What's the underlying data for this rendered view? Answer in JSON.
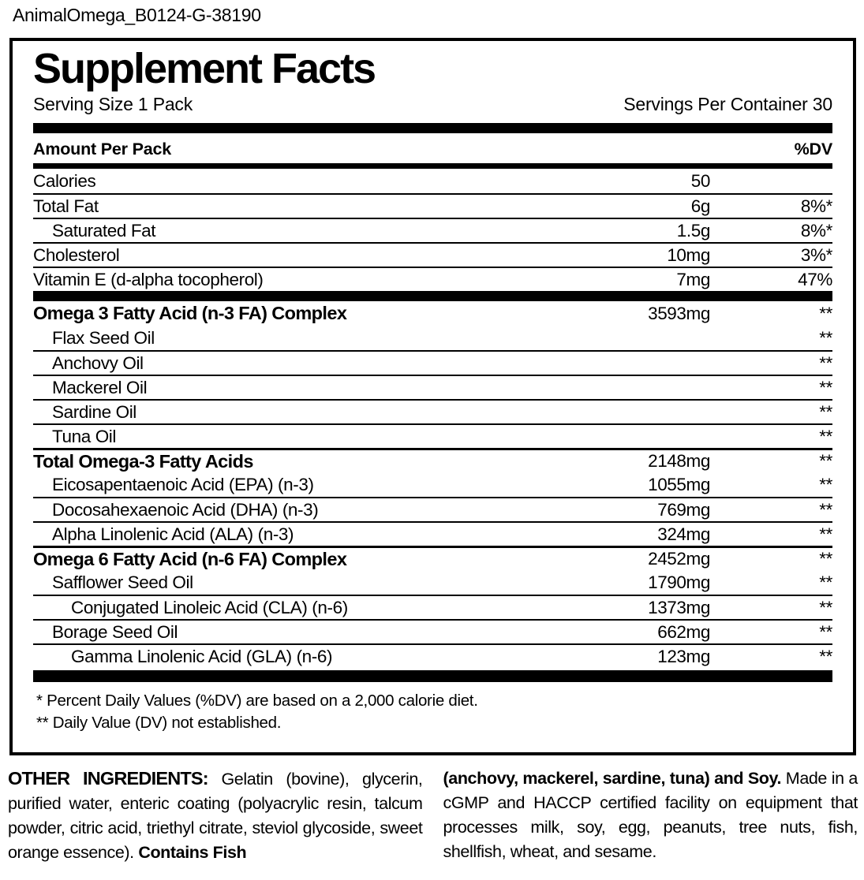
{
  "meta": {
    "filename": "AnimalOmega_B0124-G-38190"
  },
  "panel": {
    "title": "Supplement Facts",
    "serving_size": "Serving Size 1 Pack",
    "servings_per_container": "Servings Per Container 30",
    "column_header_left": "Amount Per Pack",
    "column_header_right": "%DV",
    "rows": [
      {
        "name": "Calories",
        "amount": "50",
        "dv": "",
        "indent": 0,
        "bold": false,
        "sep": "none"
      },
      {
        "name": "Total Fat",
        "amount": "6g",
        "dv": "8%*",
        "indent": 0,
        "bold": false,
        "sep": "thin"
      },
      {
        "name": "Saturated Fat",
        "amount": "1.5g",
        "dv": "8%*",
        "indent": 1,
        "bold": false,
        "sep": "thin"
      },
      {
        "name": "Cholesterol",
        "amount": "10mg",
        "dv": "3%*",
        "indent": 0,
        "bold": false,
        "sep": "thin"
      },
      {
        "name": "Vitamin E (d-alpha tocopherol)",
        "amount": "7mg",
        "dv": "47%",
        "indent": 0,
        "bold": false,
        "sep": "thin"
      },
      {
        "name": "Omega 3 Fatty Acid (n-3 FA) Complex",
        "amount": "3593mg",
        "dv": "**",
        "indent": 0,
        "bold": true,
        "sep": "bar"
      },
      {
        "name": "Flax Seed Oil",
        "amount": "",
        "dv": "**",
        "indent": 1,
        "bold": false,
        "sep": "none"
      },
      {
        "name": "Anchovy Oil",
        "amount": "",
        "dv": "**",
        "indent": 1,
        "bold": false,
        "sep": "thin"
      },
      {
        "name": "Mackerel Oil",
        "amount": "",
        "dv": "**",
        "indent": 1,
        "bold": false,
        "sep": "thin"
      },
      {
        "name": "Sardine Oil",
        "amount": "",
        "dv": "**",
        "indent": 1,
        "bold": false,
        "sep": "thin"
      },
      {
        "name": "Tuna Oil",
        "amount": "",
        "dv": "**",
        "indent": 1,
        "bold": false,
        "sep": "thin"
      },
      {
        "name": "Total Omega-3 Fatty Acids",
        "amount": "2148mg",
        "dv": "**",
        "indent": 0,
        "bold": true,
        "sep": "section"
      },
      {
        "name": "Eicosapentaenoic Acid (EPA) (n-3)",
        "amount": "1055mg",
        "dv": "**",
        "indent": 1,
        "bold": false,
        "sep": "none"
      },
      {
        "name": "Docosahexaenoic Acid (DHA) (n-3)",
        "amount": "769mg",
        "dv": "**",
        "indent": 1,
        "bold": false,
        "sep": "thin"
      },
      {
        "name": "Alpha Linolenic Acid (ALA) (n-3)",
        "amount": "324mg",
        "dv": "**",
        "indent": 1,
        "bold": false,
        "sep": "thin"
      },
      {
        "name": "Omega 6 Fatty Acid (n-6 FA) Complex",
        "amount": "2452mg",
        "dv": "**",
        "indent": 0,
        "bold": true,
        "sep": "section"
      },
      {
        "name": "Safflower Seed Oil",
        "amount": "1790mg",
        "dv": "**",
        "indent": 1,
        "bold": false,
        "sep": "none"
      },
      {
        "name": "Conjugated Linoleic Acid (CLA) (n-6)",
        "amount": "1373mg",
        "dv": "**",
        "indent": 2,
        "bold": false,
        "sep": "thin"
      },
      {
        "name": "Borage Seed Oil",
        "amount": "662mg",
        "dv": "**",
        "indent": 1,
        "bold": false,
        "sep": "thin"
      },
      {
        "name": "Gamma Linolenic Acid (GLA) (n-6)",
        "amount": "123mg",
        "dv": "**",
        "indent": 2,
        "bold": false,
        "sep": "thin"
      }
    ],
    "footnotes": [
      "* Percent Daily Values (%DV) are based on a 2,000 calorie diet.",
      "** Daily Value (DV) not established."
    ]
  },
  "other_ingredients": {
    "left_column": [
      {
        "text": "OTHER INGREDIENTS:",
        "style": "header"
      },
      {
        "text": " Gelatin (bovine), glycerin, purified water, enteric coating (polyacrylic resin, talcum powder, citric acid, triethyl citrate, steviol glycoside, sweet orange essence). ",
        "style": "normal"
      },
      {
        "text": "Contains Fish",
        "style": "bold"
      }
    ],
    "right_column": [
      {
        "text": "(anchovy, mackerel, sardine, tuna) and Soy.",
        "style": "bold"
      },
      {
        "text": " Made in a cGMP and HACCP certified facility on equipment that processes milk, soy, egg, peanuts, tree nuts, fish, shellfish, wheat, and sesame.",
        "style": "normal"
      }
    ]
  },
  "colors": {
    "ink": "#000000",
    "background": "#ffffff"
  }
}
